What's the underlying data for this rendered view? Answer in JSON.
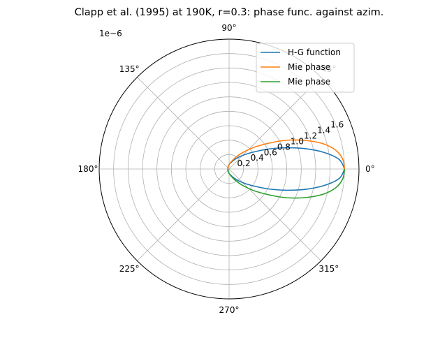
{
  "chart_data": {
    "type": "line",
    "projection": "polar",
    "title": "Clapp et al. (1995) at 190K, r=0.3: phase func. against azim.",
    "radial_offset_label": "1e−6",
    "radial_unit_scale": 1e-06,
    "rlim": [
      0,
      1.8
    ],
    "radial_ticks": [
      0.2,
      0.4,
      0.6,
      0.8,
      1.0,
      1.2,
      1.4,
      1.6
    ],
    "radial_tick_labels": [
      "0.2",
      "0.4",
      "0.6",
      "0.8",
      "1.0",
      "1.2",
      "1.4",
      "1.6"
    ],
    "radial_label_angle_deg": 22.5,
    "angular_ticks_deg": [
      0,
      45,
      90,
      135,
      180,
      225,
      270,
      315
    ],
    "angular_tick_labels": [
      "0°",
      "45°",
      "90°",
      "135°",
      "180°",
      "225°",
      "270°",
      "315°"
    ],
    "grid": true,
    "legend": "top-right",
    "series": [
      {
        "name": "H-G function",
        "color": "#1f77b4",
        "theta_deg": [
          0,
          5,
          10,
          15,
          20,
          25,
          30,
          40,
          50,
          60,
          75,
          90,
          120,
          150,
          180,
          210,
          240,
          270,
          285,
          300,
          310,
          320,
          330,
          335,
          340,
          345,
          350,
          355,
          360
        ],
        "r": [
          1.6,
          1.53,
          1.33,
          1.09,
          0.86,
          0.67,
          0.52,
          0.33,
          0.22,
          0.15,
          0.09,
          0.06,
          0.03,
          0.02,
          0.015,
          0.02,
          0.03,
          0.06,
          0.09,
          0.15,
          0.22,
          0.33,
          0.52,
          0.67,
          0.86,
          1.09,
          1.33,
          1.53,
          1.6
        ]
      },
      {
        "name": "Mie phase",
        "color": "#ff7f0e",
        "theta_deg": [
          0,
          5,
          10,
          15,
          20,
          25,
          30,
          40,
          50,
          60,
          75,
          90,
          120,
          150,
          180
        ],
        "r": [
          1.6,
          1.58,
          1.5,
          1.35,
          1.15,
          0.95,
          0.76,
          0.48,
          0.3,
          0.19,
          0.1,
          0.06,
          0.03,
          0.02,
          0.015
        ]
      },
      {
        "name": "Mie phase",
        "color": "#2ca02c",
        "theta_deg": [
          180,
          210,
          240,
          270,
          285,
          300,
          310,
          320,
          330,
          335,
          340,
          345,
          350,
          355,
          360
        ],
        "r": [
          0.015,
          0.02,
          0.03,
          0.06,
          0.1,
          0.19,
          0.3,
          0.48,
          0.76,
          0.95,
          1.15,
          1.35,
          1.5,
          1.58,
          1.6
        ]
      }
    ]
  }
}
